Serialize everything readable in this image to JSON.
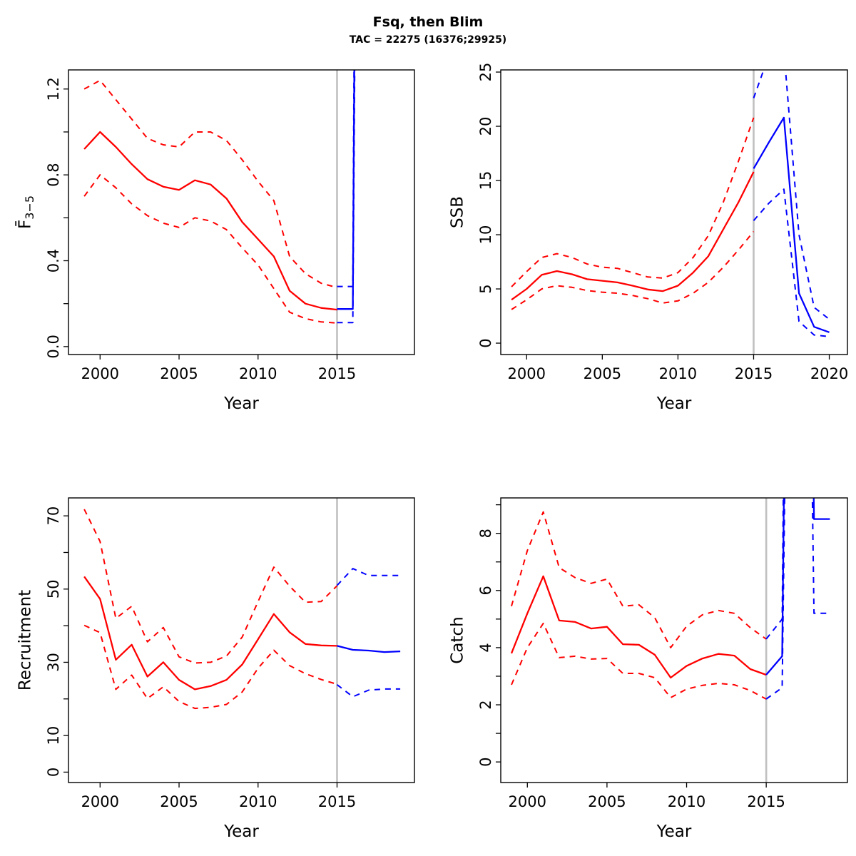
{
  "header": {
    "title": "Fsq, then Blim",
    "subtitle": "TAC = 22275 (16376;29925)"
  },
  "colors": {
    "historical": "#ff0000",
    "forecast": "#0000ff",
    "divider": "#c0c0c0",
    "axis": "#000000",
    "background": "#ffffff"
  },
  "chart_data": [
    {
      "id": "fbar",
      "type": "line",
      "ylabel": {
        "text": "F̄",
        "sub": "3−5"
      },
      "xlabel": "Year",
      "xlim": [
        1998.0,
        2019.9
      ],
      "ylim": [
        -0.037,
        1.289
      ],
      "xticks": [
        2000,
        2005,
        2010,
        2015
      ],
      "yticks": {
        "values": [
          0,
          0.2,
          0.4,
          0.6,
          0.8,
          1.0,
          1.2
        ],
        "labels": [
          "0.0",
          "",
          "0.4",
          "",
          "0.8",
          "",
          "1.2"
        ]
      },
      "divider_x": 2015,
      "grid": false,
      "series": [
        {
          "name": "hist-median",
          "period": "historical",
          "stat": "median",
          "dashed": false,
          "x": [
            1999,
            2000,
            2001,
            2002,
            2003,
            2004,
            2005,
            2006,
            2007,
            2008,
            2009,
            2010,
            2011,
            2012,
            2013,
            2014,
            2015
          ],
          "y": [
            0.92,
            1.0,
            0.93,
            0.85,
            0.78,
            0.745,
            0.73,
            0.775,
            0.755,
            0.69,
            0.58,
            0.5,
            0.42,
            0.26,
            0.2,
            0.18,
            0.172
          ]
        },
        {
          "name": "hist-lower",
          "period": "historical",
          "stat": "lower",
          "dashed": true,
          "x": [
            1999,
            2000,
            2001,
            2002,
            2003,
            2004,
            2005,
            2006,
            2007,
            2008,
            2009,
            2010,
            2011,
            2012,
            2013,
            2014,
            2015
          ],
          "y": [
            0.7,
            0.8,
            0.74,
            0.665,
            0.61,
            0.575,
            0.555,
            0.6,
            0.585,
            0.545,
            0.46,
            0.38,
            0.27,
            0.16,
            0.13,
            0.115,
            0.11
          ]
        },
        {
          "name": "hist-upper",
          "period": "historical",
          "stat": "upper",
          "dashed": true,
          "x": [
            1999,
            2000,
            2001,
            2002,
            2003,
            2004,
            2005,
            2006,
            2007,
            2008,
            2009,
            2010,
            2011,
            2012,
            2013,
            2014,
            2015
          ],
          "y": [
            1.2,
            1.24,
            1.15,
            1.06,
            0.97,
            0.94,
            0.93,
            1.0,
            1.0,
            0.96,
            0.87,
            0.77,
            0.68,
            0.42,
            0.34,
            0.295,
            0.275
          ]
        },
        {
          "name": "forecast-median",
          "period": "forecast",
          "stat": "median",
          "dashed": false,
          "x": [
            2015,
            2016,
            2017
          ],
          "y": [
            0.175,
            0.175,
            12
          ]
        },
        {
          "name": "forecast-lower",
          "period": "forecast",
          "stat": "lower",
          "dashed": true,
          "x": [
            2015,
            2016,
            2017
          ],
          "y": [
            0.112,
            0.112,
            10
          ]
        },
        {
          "name": "forecast-upper",
          "period": "forecast",
          "stat": "upper",
          "dashed": true,
          "x": [
            2015,
            2016,
            2017
          ],
          "y": [
            0.28,
            0.28,
            14
          ]
        }
      ]
    },
    {
      "id": "ssb",
      "type": "line",
      "ylabel": {
        "text": "SSB"
      },
      "xlabel": "Year",
      "xlim": [
        1998.29,
        2021.2
      ],
      "ylim": [
        -1.05,
        25.2
      ],
      "xticks": [
        2000,
        2005,
        2010,
        2015,
        2020
      ],
      "yticks": {
        "values": [
          0,
          5,
          10,
          15,
          20,
          25
        ],
        "labels": [
          "0",
          "5",
          "10",
          "15",
          "20",
          "25"
        ]
      },
      "divider_x": 2015,
      "grid": false,
      "series": [
        {
          "name": "hist-median",
          "period": "historical",
          "stat": "median",
          "dashed": false,
          "x": [
            1999,
            2000,
            2001,
            2002,
            2003,
            2004,
            2005,
            2006,
            2007,
            2008,
            2009,
            2010,
            2011,
            2012,
            2013,
            2014,
            2015
          ],
          "y": [
            4.0,
            5.0,
            6.3,
            6.65,
            6.35,
            5.9,
            5.75,
            5.6,
            5.3,
            4.95,
            4.8,
            5.3,
            6.5,
            8.0,
            10.5,
            13.0,
            15.8
          ]
        },
        {
          "name": "hist-lower",
          "period": "historical",
          "stat": "lower",
          "dashed": true,
          "x": [
            1999,
            2000,
            2001,
            2002,
            2003,
            2004,
            2005,
            2006,
            2007,
            2008,
            2009,
            2010,
            2011,
            2012,
            2013,
            2014,
            2015
          ],
          "y": [
            3.1,
            4.0,
            5.0,
            5.3,
            5.15,
            4.85,
            4.7,
            4.6,
            4.4,
            4.1,
            3.7,
            3.9,
            4.6,
            5.6,
            7.0,
            8.6,
            10.3
          ]
        },
        {
          "name": "hist-upper",
          "period": "historical",
          "stat": "upper",
          "dashed": true,
          "x": [
            1999,
            2000,
            2001,
            2002,
            2003,
            2004,
            2005,
            2006,
            2007,
            2008,
            2009,
            2010,
            2011,
            2012,
            2013,
            2014,
            2015
          ],
          "y": [
            5.2,
            6.6,
            7.9,
            8.25,
            7.9,
            7.3,
            7.0,
            6.9,
            6.5,
            6.1,
            6.0,
            6.5,
            7.9,
            9.9,
            13.0,
            16.8,
            20.8
          ]
        },
        {
          "name": "forecast-median",
          "period": "forecast",
          "stat": "median",
          "dashed": false,
          "x": [
            2015,
            2016,
            2017,
            2018,
            2019,
            2020
          ],
          "y": [
            16.1,
            18.5,
            20.8,
            4.6,
            1.5,
            1.0
          ]
        },
        {
          "name": "forecast-lower",
          "period": "forecast",
          "stat": "lower",
          "dashed": true,
          "x": [
            2015,
            2016,
            2017,
            2018,
            2019,
            2020
          ],
          "y": [
            11.3,
            12.9,
            14.2,
            2.0,
            0.75,
            0.6
          ]
        },
        {
          "name": "forecast-upper",
          "period": "forecast",
          "stat": "upper",
          "dashed": true,
          "x": [
            2015,
            2016,
            2017,
            2018,
            2019,
            2020
          ],
          "y": [
            22.6,
            26.5,
            27,
            10.0,
            3.3,
            2.2
          ]
        }
      ]
    },
    {
      "id": "recruitment",
      "type": "line",
      "ylabel": {
        "text": "Recruitment"
      },
      "xlabel": "Year",
      "xlim": [
        1998.0,
        2019.9
      ],
      "ylim": [
        -2.84,
        74.9
      ],
      "xticks": [
        2000,
        2005,
        2010,
        2015
      ],
      "yticks": {
        "values": [
          0,
          10,
          20,
          30,
          40,
          50,
          60,
          70
        ],
        "labels": [
          "0",
          "10",
          "",
          "30",
          "",
          "50",
          "",
          "70"
        ]
      },
      "divider_x": 2015,
      "grid": false,
      "series": [
        {
          "name": "hist-median",
          "period": "historical",
          "stat": "median",
          "dashed": false,
          "x": [
            1999,
            2000,
            2001,
            2002,
            2003,
            2004,
            2005,
            2006,
            2007,
            2008,
            2009,
            2010,
            2011,
            2012,
            2013,
            2014,
            2015
          ],
          "y": [
            53.4,
            47.3,
            30.7,
            34.8,
            26.1,
            30.0,
            25.2,
            22.6,
            23.5,
            25.2,
            29.4,
            36.3,
            43.2,
            38.2,
            35.0,
            34.6,
            34.5
          ]
        },
        {
          "name": "hist-lower",
          "period": "historical",
          "stat": "lower",
          "dashed": true,
          "x": [
            1999,
            2000,
            2001,
            2002,
            2003,
            2004,
            2005,
            2006,
            2007,
            2008,
            2009,
            2010,
            2011,
            2012,
            2013,
            2014,
            2015
          ],
          "y": [
            40.1,
            38.1,
            22.6,
            26.5,
            20.1,
            23.3,
            19.3,
            17.4,
            17.7,
            18.5,
            21.9,
            28.4,
            33.3,
            29.1,
            26.9,
            25.3,
            24.0
          ]
        },
        {
          "name": "hist-upper",
          "period": "historical",
          "stat": "upper",
          "dashed": true,
          "x": [
            1999,
            2000,
            2001,
            2002,
            2003,
            2004,
            2005,
            2006,
            2007,
            2008,
            2009,
            2010,
            2011,
            2012,
            2013,
            2014,
            2015
          ],
          "y": [
            71.8,
            63.0,
            42.0,
            45.3,
            35.6,
            39.5,
            31.5,
            29.8,
            30.0,
            31.7,
            36.9,
            46.6,
            56.0,
            50.8,
            46.4,
            46.6,
            50.9
          ]
        },
        {
          "name": "forecast-median",
          "period": "forecast",
          "stat": "median",
          "dashed": false,
          "x": [
            2015,
            2016,
            2017,
            2018,
            2019
          ],
          "y": [
            34.5,
            33.4,
            33.2,
            32.8,
            33.0
          ]
        },
        {
          "name": "forecast-lower",
          "period": "forecast",
          "stat": "lower",
          "dashed": true,
          "x": [
            2015,
            2016,
            2017,
            2018,
            2019
          ],
          "y": [
            23.9,
            20.6,
            22.4,
            22.7,
            22.7
          ]
        },
        {
          "name": "forecast-upper",
          "period": "forecast",
          "stat": "upper",
          "dashed": true,
          "x": [
            2015,
            2016,
            2017,
            2018,
            2019
          ],
          "y": [
            51.0,
            55.6,
            53.7,
            53.7,
            53.7
          ]
        }
      ]
    },
    {
      "id": "catch",
      "type": "line",
      "ylabel": {
        "text": "Catch"
      },
      "xlabel": "Year",
      "xlim": [
        1998.33,
        2020.1
      ],
      "ylim": [
        -0.72,
        9.24
      ],
      "xticks": [
        2000,
        2005,
        2010,
        2015
      ],
      "yticks": {
        "values": [
          0,
          1,
          2,
          3,
          4,
          5,
          6,
          7,
          8,
          9
        ],
        "labels": [
          "0",
          "",
          "2",
          "",
          "4",
          "",
          "6",
          "",
          "8",
          ""
        ]
      },
      "divider_x": 2015,
      "grid": false,
      "series": [
        {
          "name": "hist-median",
          "period": "historical",
          "stat": "median",
          "dashed": false,
          "x": [
            1999,
            2000,
            2001,
            2002,
            2003,
            2004,
            2005,
            2006,
            2007,
            2008,
            2009,
            2010,
            2011,
            2012,
            2013,
            2014,
            2015
          ],
          "y": [
            3.8,
            5.2,
            6.5,
            4.95,
            4.9,
            4.67,
            4.73,
            4.12,
            4.1,
            3.75,
            2.95,
            3.36,
            3.62,
            3.78,
            3.72,
            3.25,
            3.05
          ]
        },
        {
          "name": "hist-lower",
          "period": "historical",
          "stat": "lower",
          "dashed": true,
          "x": [
            1999,
            2000,
            2001,
            2002,
            2003,
            2004,
            2005,
            2006,
            2007,
            2008,
            2009,
            2010,
            2011,
            2012,
            2013,
            2014,
            2015
          ],
          "y": [
            2.7,
            4.0,
            4.85,
            3.65,
            3.7,
            3.6,
            3.62,
            3.1,
            3.1,
            2.95,
            2.25,
            2.55,
            2.68,
            2.75,
            2.7,
            2.5,
            2.2
          ]
        },
        {
          "name": "hist-upper",
          "period": "historical",
          "stat": "upper",
          "dashed": true,
          "x": [
            1999,
            2000,
            2001,
            2002,
            2003,
            2004,
            2005,
            2006,
            2007,
            2008,
            2009,
            2010,
            2011,
            2012,
            2013,
            2014,
            2015
          ],
          "y": [
            5.45,
            7.4,
            8.75,
            6.8,
            6.45,
            6.25,
            6.4,
            5.45,
            5.5,
            5.05,
            4.0,
            4.75,
            5.15,
            5.3,
            5.2,
            4.7,
            4.3
          ]
        },
        {
          "name": "forecast-median",
          "period": "forecast",
          "stat": "median",
          "dashed": false,
          "x": [
            2015,
            2016,
            2017,
            2018,
            2019
          ],
          "y": [
            3.05,
            3.7,
            55,
            8.5,
            8.5
          ]
        },
        {
          "name": "forecast-lower",
          "period": "forecast",
          "stat": "lower",
          "dashed": true,
          "x": [
            2015,
            2016,
            2017,
            2018,
            2019
          ],
          "y": [
            2.2,
            2.6,
            45,
            5.2,
            5.2
          ]
        },
        {
          "name": "forecast-upper",
          "period": "forecast",
          "stat": "upper",
          "dashed": true,
          "x": [
            2015,
            2016,
            2017,
            2018,
            2019
          ],
          "y": [
            4.3,
            5.0,
            65,
            25,
            25
          ]
        }
      ]
    }
  ]
}
